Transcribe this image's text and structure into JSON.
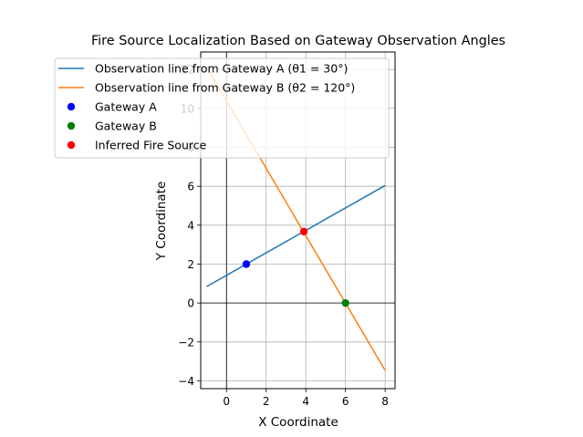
{
  "chart_data": {
    "type": "line",
    "title": "Fire Source Localization Based on Gateway Observation Angles",
    "xlabel": "X Coordinate",
    "ylabel": "Y Coordinate",
    "xlim": [
      -1.3,
      8.5
    ],
    "ylim": [
      -4.4,
      12.9
    ],
    "xticks": [
      0,
      2,
      4,
      6,
      8
    ],
    "yticks": [
      -4,
      -2,
      0,
      2,
      4,
      6,
      8,
      10,
      12
    ],
    "xtick_labels": [
      "0",
      "2",
      "4",
      "6",
      "8"
    ],
    "ytick_labels": [
      "−4",
      "−2",
      "0",
      "2",
      "4",
      "6",
      "8",
      "10",
      "12"
    ],
    "grid": true,
    "legend_position": "top-left",
    "reference_lines": {
      "x": 0,
      "y": 0
    },
    "series": [
      {
        "name": "Observation line from Gateway A (θ1 = 30°)",
        "kind": "line",
        "color": "#1f77b4",
        "x": [
          -1,
          8
        ],
        "y": [
          0.845,
          6.041
        ]
      },
      {
        "name": "Observation line from Gateway B (θ2 = 120°)",
        "kind": "line",
        "color": "#ff7f0e",
        "x": [
          -1,
          8
        ],
        "y": [
          12.124,
          -3.464
        ]
      },
      {
        "name": "Gateway A",
        "kind": "scatter",
        "color": "#0000ff",
        "x": [
          1
        ],
        "y": [
          2
        ]
      },
      {
        "name": "Gateway B",
        "kind": "scatter",
        "color": "#008000",
        "x": [
          6
        ],
        "y": [
          0
        ]
      },
      {
        "name": "Inferred Fire Source",
        "kind": "scatter",
        "color": "#ff0000",
        "x": [
          3.9
        ],
        "y": [
          3.67
        ]
      }
    ]
  }
}
